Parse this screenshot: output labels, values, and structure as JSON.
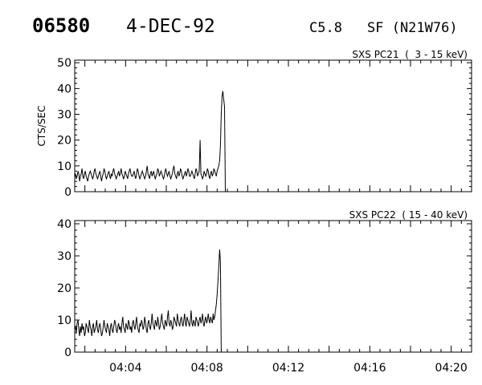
{
  "header": {
    "event_id": "06580",
    "date": "4-DEC-92",
    "flare_class": "C5.8",
    "flare_location": "SF (N21W76)"
  },
  "chart_data": [
    {
      "type": "line",
      "title": "SXS PC21  (  3 - 15 keV)",
      "ylabel": "CTS/SEC",
      "xlabel": "",
      "xlim": [
        "04:01:30",
        "04:21:00"
      ],
      "ylim": [
        0,
        51
      ],
      "x_ticks": [
        "04:04",
        "04:08",
        "04:12",
        "04:16",
        "04:20"
      ],
      "y_ticks": [
        0,
        10,
        20,
        30,
        40,
        50
      ],
      "grid": false,
      "series": [
        {
          "x_start": "04:01:30",
          "sample_seconds": 2.4,
          "values": [
            6,
            7,
            5,
            6,
            8,
            7,
            4,
            6,
            7,
            9,
            6,
            5,
            7,
            8,
            6,
            5,
            4,
            6,
            7,
            8,
            7,
            6,
            5,
            6,
            8,
            9,
            7,
            6,
            5,
            6,
            7,
            8,
            6,
            4,
            6,
            7,
            9,
            8,
            6,
            5,
            6,
            7,
            8,
            6,
            5,
            7,
            6,
            8,
            9,
            7,
            6,
            5,
            6,
            7,
            8,
            6,
            7,
            9,
            7,
            6,
            5,
            6,
            8,
            7,
            6,
            5,
            7,
            8,
            9,
            7,
            6,
            6,
            7,
            8,
            6,
            5,
            7,
            9,
            8,
            6,
            5,
            6,
            7,
            8,
            7,
            6,
            5,
            6,
            8,
            10,
            7,
            6,
            5,
            7,
            8,
            6,
            7,
            8,
            6,
            5,
            6,
            7,
            9,
            8,
            6,
            7,
            8,
            7,
            6,
            5,
            6,
            8,
            9,
            7,
            6,
            7,
            8,
            6,
            5,
            6,
            7,
            9,
            10,
            7,
            6,
            5,
            7,
            8,
            6,
            7,
            9,
            8,
            6,
            5,
            6,
            7,
            8,
            6,
            7,
            9,
            8,
            6,
            6,
            7,
            8,
            7,
            6,
            5,
            7,
            9,
            8,
            6,
            7,
            8,
            20,
            7,
            6,
            5,
            6,
            8,
            7,
            6,
            7,
            9,
            8,
            6,
            5,
            7,
            8,
            6,
            7,
            9,
            8,
            7,
            6,
            8,
            9,
            10,
            12,
            18,
            30,
            37,
            39,
            36,
            33,
            0
          ]
        }
      ]
    },
    {
      "type": "line",
      "title": "SXS PC22  ( 15 - 40 keV)",
      "ylabel": "",
      "xlabel": "",
      "xlim": [
        "04:01:30",
        "04:21:00"
      ],
      "ylim": [
        0,
        41
      ],
      "x_ticks": [
        "04:04",
        "04:08",
        "04:12",
        "04:16",
        "04:20"
      ],
      "y_ticks": [
        0,
        10,
        20,
        30,
        40
      ],
      "grid": false,
      "series": [
        {
          "x_start": "04:01:30",
          "sample_seconds": 2.4,
          "values": [
            7,
            8,
            6,
            9,
            10,
            7,
            5,
            8,
            6,
            9,
            7,
            8,
            5,
            6,
            9,
            8,
            7,
            6,
            10,
            8,
            7,
            5,
            8,
            9,
            6,
            7,
            8,
            10,
            7,
            6,
            8,
            9,
            7,
            5,
            6,
            8,
            10,
            8,
            7,
            6,
            9,
            8,
            7,
            5,
            8,
            9,
            7,
            6,
            8,
            10,
            9,
            7,
            6,
            8,
            9,
            7,
            8,
            6,
            9,
            11,
            8,
            7,
            6,
            9,
            8,
            7,
            10,
            9,
            7,
            8,
            6,
            9,
            10,
            8,
            7,
            9,
            11,
            8,
            7,
            6,
            9,
            8,
            10,
            9,
            7,
            8,
            11,
            9,
            7,
            6,
            9,
            10,
            8,
            7,
            9,
            12,
            9,
            8,
            7,
            10,
            9,
            8,
            11,
            9,
            7,
            8,
            10,
            12,
            9,
            8,
            7,
            10,
            9,
            8,
            11,
            13,
            9,
            8,
            10,
            9,
            7,
            8,
            11,
            10,
            9,
            8,
            12,
            10,
            9,
            8,
            10,
            11,
            9,
            8,
            10,
            12,
            9,
            8,
            11,
            10,
            9,
            8,
            10,
            13,
            9,
            8,
            10,
            9,
            8,
            11,
            10,
            9,
            8,
            10,
            11,
            9,
            10,
            12,
            9,
            8,
            10,
            11,
            9,
            10,
            12,
            10,
            9,
            11,
            10,
            9,
            12,
            10,
            11,
            13,
            15,
            18,
            22,
            27,
            32,
            28,
            0
          ]
        }
      ]
    }
  ]
}
